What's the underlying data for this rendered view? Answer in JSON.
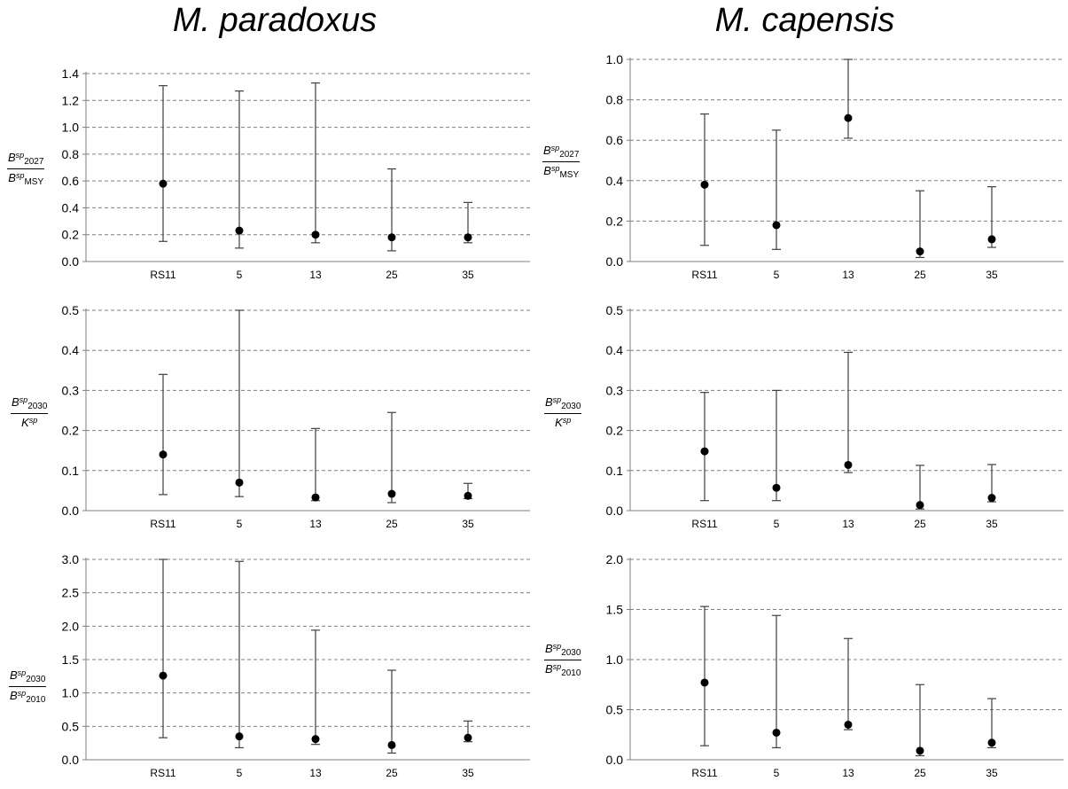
{
  "titles": {
    "left": "M. paradoxus",
    "right": "M. capensis"
  },
  "ylabels": [
    {
      "num_main": "B",
      "num_sup": "sp",
      "num_sub": "2027",
      "den_main": "B",
      "den_sup": "sp",
      "den_sub": "MSY"
    },
    {
      "num_main": "B",
      "num_sup": "sp",
      "num_sub": "2030",
      "den_main": "K",
      "den_sup": "sp",
      "den_sub": ""
    },
    {
      "num_main": "B",
      "num_sup": "sp",
      "num_sub": "2030",
      "den_main": "B",
      "den_sup": "sp",
      "den_sub": "2010"
    }
  ],
  "chart_data": [
    {
      "panel": "M. paradoxus row 1",
      "type": "scatter",
      "error_bars": true,
      "categories": [
        "RS11",
        "5",
        "13",
        "25",
        "35"
      ],
      "ylim": [
        0,
        1.4
      ],
      "yticks": [
        "0.0",
        "0.2",
        "0.4",
        "0.6",
        "0.8",
        "1.0",
        "1.2",
        "1.4"
      ],
      "values": [
        0.58,
        0.23,
        0.2,
        0.18,
        0.18
      ],
      "lower": [
        0.15,
        0.1,
        0.14,
        0.08,
        0.14
      ],
      "upper": [
        1.31,
        1.27,
        1.33,
        0.69,
        0.44
      ],
      "grid": true
    },
    {
      "panel": "M. capensis row 1",
      "type": "scatter",
      "error_bars": true,
      "categories": [
        "RS11",
        "5",
        "13",
        "25",
        "35"
      ],
      "ylim": [
        0,
        1.0
      ],
      "yticks": [
        "0.0",
        "0.2",
        "0.4",
        "0.6",
        "0.8",
        "1.0"
      ],
      "values": [
        0.38,
        0.18,
        0.71,
        0.05,
        0.11
      ],
      "lower": [
        0.08,
        0.06,
        0.61,
        0.02,
        0.07
      ],
      "upper": [
        0.73,
        0.65,
        1.0,
        0.35,
        0.37
      ],
      "grid": true
    },
    {
      "panel": "M. paradoxus row 2",
      "type": "scatter",
      "error_bars": true,
      "categories": [
        "RS11",
        "5",
        "13",
        "25",
        "35"
      ],
      "ylim": [
        0,
        0.5
      ],
      "yticks": [
        "0.0",
        "0.1",
        "0.2",
        "0.3",
        "0.4",
        "0.5"
      ],
      "values": [
        0.14,
        0.07,
        0.033,
        0.042,
        0.037
      ],
      "lower": [
        0.04,
        0.035,
        0.025,
        0.02,
        0.03
      ],
      "upper": [
        0.34,
        0.5,
        0.205,
        0.245,
        0.068
      ],
      "grid": true
    },
    {
      "panel": "M. capensis row 2",
      "type": "scatter",
      "error_bars": true,
      "categories": [
        "RS11",
        "5",
        "13",
        "25",
        "35"
      ],
      "ylim": [
        0,
        0.5
      ],
      "yticks": [
        "0.0",
        "0.1",
        "0.2",
        "0.3",
        "0.4",
        "0.5"
      ],
      "values": [
        0.148,
        0.057,
        0.114,
        0.014,
        0.032
      ],
      "lower": [
        0.025,
        0.025,
        0.095,
        0.004,
        0.022
      ],
      "upper": [
        0.295,
        0.3,
        0.395,
        0.113,
        0.115
      ],
      "grid": true
    },
    {
      "panel": "M. paradoxus row 3",
      "type": "scatter",
      "error_bars": true,
      "categories": [
        "RS11",
        "5",
        "13",
        "25",
        "35"
      ],
      "ylim": [
        0,
        3.0
      ],
      "yticks": [
        "0.0",
        "0.5",
        "1.0",
        "1.5",
        "2.0",
        "2.5",
        "3.0"
      ],
      "values": [
        1.26,
        0.35,
        0.31,
        0.22,
        0.33
      ],
      "lower": [
        0.33,
        0.18,
        0.23,
        0.1,
        0.27
      ],
      "upper": [
        3.0,
        2.97,
        1.94,
        1.34,
        0.58
      ],
      "grid": true
    },
    {
      "panel": "M. capensis row 3",
      "type": "scatter",
      "error_bars": true,
      "categories": [
        "RS11",
        "5",
        "13",
        "25",
        "35"
      ],
      "ylim": [
        0,
        2.0
      ],
      "yticks": [
        "0.0",
        "0.5",
        "1.0",
        "1.5",
        "2.0"
      ],
      "values": [
        0.77,
        0.27,
        0.35,
        0.09,
        0.17
      ],
      "lower": [
        0.14,
        0.12,
        0.3,
        0.04,
        0.12
      ],
      "upper": [
        1.53,
        1.44,
        1.21,
        0.75,
        0.61
      ],
      "grid": true
    }
  ]
}
